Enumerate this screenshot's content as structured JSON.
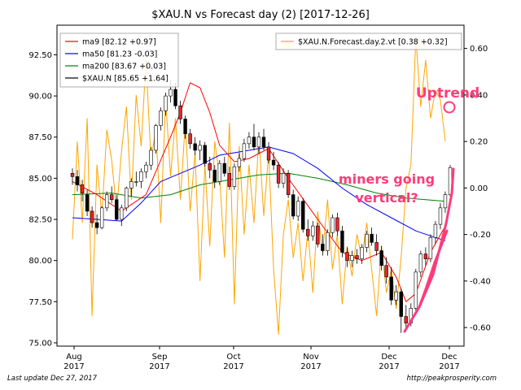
{
  "chart_data": {
    "type": "candlestick",
    "title": "$XAU.N vs Forecast day (2)  [2017-12-26]",
    "x_ticks": [
      "Aug\n2017",
      "Sep\n2017",
      "Oct\n2017",
      "Nov\n2017",
      "Dec\n2017",
      "Dec\n2017"
    ],
    "y_left": {
      "lim": [
        74.8,
        94.3
      ],
      "ticks": [
        "75.00",
        "77.50",
        "80.00",
        "82.50",
        "85.00",
        "87.50",
        "90.00",
        "92.50"
      ]
    },
    "y_right": {
      "lim": [
        -0.68,
        0.7
      ],
      "ticks": [
        "-0.60",
        "-0.40",
        "-0.20",
        "0.00",
        "0.20",
        "0.40",
        "0.60"
      ]
    },
    "legend_left": {
      "position": "top-left",
      "entries": [
        {
          "label": "ma9 [82.12 +0.97]",
          "color": "#ff0000"
        },
        {
          "label": "ma50 [81.23 -0.03]",
          "color": "#0000ff"
        },
        {
          "label": "ma200 [83.67 +0.03]",
          "color": "#008000"
        },
        {
          "label": "$XAU.N [85.65 +1.64]",
          "color": "#000000"
        }
      ]
    },
    "legend_right": {
      "position": "top-right",
      "entries": [
        {
          "label": "$XAU.N.Forecast.day.2.vt [0.38 +0.32]",
          "color": "#ffa500"
        }
      ]
    },
    "candles": [
      [
        85.3,
        85.6,
        84.6,
        85.1
      ],
      [
        85.1,
        85.5,
        84.2,
        84.6
      ],
      [
        84.6,
        84.9,
        83.6,
        84.1
      ],
      [
        84.0,
        84.3,
        82.7,
        83.0
      ],
      [
        83.0,
        83.3,
        82.0,
        82.3
      ],
      [
        82.3,
        82.8,
        81.6,
        82.0
      ],
      [
        82.0,
        83.3,
        81.9,
        83.2
      ],
      [
        83.2,
        84.2,
        83.0,
        84.0
      ],
      [
        84.0,
        84.5,
        83.5,
        83.7
      ],
      [
        83.7,
        84.0,
        82.4,
        82.5
      ],
      [
        82.5,
        83.4,
        82.1,
        83.2
      ],
      [
        83.2,
        84.5,
        83.0,
        84.4
      ],
      [
        84.4,
        85.0,
        83.9,
        84.8
      ],
      [
        84.8,
        85.4,
        84.5,
        84.8
      ],
      [
        84.8,
        85.6,
        84.4,
        85.4
      ],
      [
        85.4,
        86.0,
        85.0,
        85.8
      ],
      [
        85.8,
        86.9,
        85.5,
        86.7
      ],
      [
        86.7,
        88.3,
        86.5,
        88.2
      ],
      [
        88.2,
        89.3,
        87.9,
        89.1
      ],
      [
        89.1,
        90.2,
        88.8,
        90.0
      ],
      [
        90.0,
        91.0,
        89.6,
        90.4
      ],
      [
        90.4,
        90.8,
        89.2,
        89.4
      ],
      [
        89.4,
        89.7,
        88.3,
        88.6
      ],
      [
        88.6,
        88.8,
        87.4,
        87.7
      ],
      [
        87.7,
        88.0,
        86.8,
        87.1
      ],
      [
        87.1,
        87.5,
        86.4,
        86.7
      ],
      [
        86.7,
        87.3,
        86.1,
        87.0
      ],
      [
        87.0,
        87.2,
        85.7,
        85.9
      ],
      [
        85.9,
        86.3,
        85.0,
        85.5
      ],
      [
        85.5,
        85.8,
        84.4,
        84.8
      ],
      [
        84.8,
        86.1,
        84.6,
        85.9
      ],
      [
        85.9,
        86.3,
        85.1,
        85.3
      ],
      [
        85.3,
        85.7,
        84.3,
        84.5
      ],
      [
        84.5,
        85.9,
        84.3,
        85.7
      ],
      [
        85.7,
        86.5,
        85.4,
        86.2
      ],
      [
        86.2,
        87.4,
        86.0,
        87.1
      ],
      [
        87.1,
        87.8,
        86.8,
        87.5
      ],
      [
        87.5,
        88.3,
        86.7,
        86.9
      ],
      [
        86.9,
        87.8,
        86.5,
        87.5
      ],
      [
        87.5,
        88.0,
        86.7,
        86.9
      ],
      [
        86.9,
        87.2,
        85.9,
        86.1
      ],
      [
        86.1,
        86.6,
        85.5,
        85.8
      ],
      [
        85.8,
        86.0,
        84.4,
        84.7
      ],
      [
        84.7,
        85.6,
        84.4,
        85.3
      ],
      [
        85.3,
        85.5,
        83.8,
        84.0
      ],
      [
        84.0,
        84.3,
        82.5,
        82.7
      ],
      [
        82.7,
        83.9,
        82.4,
        83.6
      ],
      [
        83.6,
        83.8,
        81.7,
        81.9
      ],
      [
        81.9,
        82.5,
        81.2,
        81.5
      ],
      [
        81.5,
        82.4,
        81.2,
        82.1
      ],
      [
        82.1,
        82.3,
        80.8,
        81.0
      ],
      [
        81.0,
        81.6,
        80.3,
        80.6
      ],
      [
        80.6,
        81.9,
        80.3,
        81.7
      ],
      [
        81.7,
        82.8,
        81.4,
        82.6
      ],
      [
        82.6,
        82.9,
        81.5,
        81.8
      ],
      [
        81.8,
        82.1,
        80.2,
        80.5
      ],
      [
        80.5,
        80.8,
        79.6,
        80.0
      ],
      [
        80.0,
        80.6,
        79.6,
        80.3
      ],
      [
        80.3,
        80.7,
        79.8,
        80.1
      ],
      [
        80.1,
        81.0,
        79.8,
        80.8
      ],
      [
        80.8,
        81.8,
        80.5,
        81.6
      ],
      [
        81.6,
        82.0,
        80.9,
        81.1
      ],
      [
        81.1,
        81.6,
        80.3,
        80.6
      ],
      [
        80.6,
        80.9,
        79.4,
        79.7
      ],
      [
        79.7,
        80.2,
        78.6,
        79.0
      ],
      [
        79.0,
        79.6,
        77.3,
        77.6
      ],
      [
        77.6,
        78.5,
        77.3,
        78.1
      ],
      [
        78.1,
        78.3,
        75.6,
        76.6
      ],
      [
        76.6,
        77.3,
        75.8,
        76.2
      ],
      [
        76.2,
        77.4,
        76.0,
        77.1
      ],
      [
        77.1,
        79.5,
        76.9,
        79.3
      ],
      [
        79.3,
        80.6,
        79.0,
        80.4
      ],
      [
        80.4,
        80.8,
        79.7,
        80.1
      ],
      [
        80.1,
        81.6,
        79.9,
        81.4
      ],
      [
        81.4,
        82.4,
        81.0,
        82.2
      ],
      [
        82.2,
        83.5,
        81.9,
        83.2
      ],
      [
        83.2,
        84.2,
        82.9,
        84.0
      ],
      [
        84.0,
        85.8,
        83.9,
        85.65
      ]
    ],
    "ma9": [
      [
        0,
        84.8
      ],
      [
        5,
        84.0
      ],
      [
        10,
        83.0
      ],
      [
        15,
        84.0
      ],
      [
        20,
        87.5
      ],
      [
        22,
        89.0
      ],
      [
        24,
        90.8
      ],
      [
        26,
        90.5
      ],
      [
        28,
        89.0
      ],
      [
        30,
        87.0
      ],
      [
        33,
        86.0
      ],
      [
        36,
        86.2
      ],
      [
        40,
        86.8
      ],
      [
        44,
        85.0
      ],
      [
        50,
        82.5
      ],
      [
        55,
        80.5
      ],
      [
        59,
        80.0
      ],
      [
        63,
        80.5
      ],
      [
        66,
        79.0
      ],
      [
        68,
        77.5
      ],
      [
        70,
        78.0
      ],
      [
        73,
        80.5
      ],
      [
        76,
        82.1
      ]
    ],
    "ma50": [
      [
        0,
        82.6
      ],
      [
        5,
        82.5
      ],
      [
        10,
        82.4
      ],
      [
        14,
        83.5
      ],
      [
        18,
        84.8
      ],
      [
        22,
        85.3
      ],
      [
        26,
        85.8
      ],
      [
        30,
        86.4
      ],
      [
        34,
        86.6
      ],
      [
        40,
        86.9
      ],
      [
        45,
        86.5
      ],
      [
        50,
        85.6
      ],
      [
        55,
        84.4
      ],
      [
        60,
        83.4
      ],
      [
        65,
        82.6
      ],
      [
        70,
        81.8
      ],
      [
        73,
        81.5
      ],
      [
        76,
        81.2
      ]
    ],
    "ma200": [
      [
        0,
        84.0
      ],
      [
        8,
        84.1
      ],
      [
        14,
        83.8
      ],
      [
        20,
        84.0
      ],
      [
        26,
        84.6
      ],
      [
        32,
        84.9
      ],
      [
        38,
        85.2
      ],
      [
        44,
        85.3
      ],
      [
        50,
        85.0
      ],
      [
        56,
        84.6
      ],
      [
        62,
        84.1
      ],
      [
        68,
        83.8
      ],
      [
        72,
        83.7
      ],
      [
        76,
        83.6
      ]
    ],
    "forecast": [
      [
        0,
        -0.22
      ],
      [
        1,
        0.2
      ],
      [
        2,
        -0.15
      ],
      [
        3,
        0.3
      ],
      [
        4,
        -0.55
      ],
      [
        5,
        0.1
      ],
      [
        6,
        -0.12
      ],
      [
        7,
        0.25
      ],
      [
        8,
        0.12
      ],
      [
        9,
        -0.1
      ],
      [
        10,
        0.16
      ],
      [
        11,
        0.35
      ],
      [
        12,
        -0.05
      ],
      [
        13,
        0.4
      ],
      [
        14,
        0.18
      ],
      [
        15,
        0.55
      ],
      [
        16,
        0.12
      ],
      [
        17,
        0.25
      ],
      [
        18,
        -0.15
      ],
      [
        19,
        0.38
      ],
      [
        20,
        0.05
      ],
      [
        21,
        0.3
      ],
      [
        22,
        -0.05
      ],
      [
        23,
        0.28
      ],
      [
        24,
        -0.1
      ],
      [
        25,
        0.15
      ],
      [
        26,
        -0.4
      ],
      [
        27,
        0.1
      ],
      [
        28,
        -0.25
      ],
      [
        29,
        0.2
      ],
      [
        30,
        0.05
      ],
      [
        31,
        -0.3
      ],
      [
        32,
        0.28
      ],
      [
        33,
        -0.5
      ],
      [
        34,
        0.18
      ],
      [
        35,
        -0.2
      ],
      [
        36,
        0.1
      ],
      [
        37,
        -0.15
      ],
      [
        38,
        0.22
      ],
      [
        39,
        -0.12
      ],
      [
        40,
        0.15
      ],
      [
        41,
        -0.35
      ],
      [
        42,
        -0.63
      ],
      [
        43,
        -0.2
      ],
      [
        44,
        -0.05
      ],
      [
        45,
        -0.3
      ],
      [
        46,
        -0.15
      ],
      [
        47,
        -0.4
      ],
      [
        48,
        -0.18
      ],
      [
        49,
        -0.45
      ],
      [
        50,
        -0.1
      ],
      [
        51,
        -0.28
      ],
      [
        52,
        -0.05
      ],
      [
        53,
        -0.35
      ],
      [
        54,
        -0.2
      ],
      [
        55,
        -0.5
      ],
      [
        56,
        -0.25
      ],
      [
        57,
        -0.38
      ],
      [
        58,
        -0.2
      ],
      [
        59,
        -0.3
      ],
      [
        60,
        -0.15
      ],
      [
        61,
        -0.35
      ],
      [
        62,
        -0.55
      ],
      [
        63,
        -0.25
      ],
      [
        64,
        -0.45
      ],
      [
        65,
        -0.35
      ],
      [
        66,
        -0.52
      ],
      [
        67,
        -0.3
      ],
      [
        68,
        0.0
      ],
      [
        69,
        0.1
      ],
      [
        70,
        0.65
      ],
      [
        71,
        0.35
      ],
      [
        72,
        0.55
      ],
      [
        73,
        0.3
      ],
      [
        74,
        0.42
      ],
      [
        75,
        0.38
      ],
      [
        76,
        0.2
      ]
    ],
    "annotations": [
      {
        "text": "Uptrend",
        "color": "#ff3b7a"
      },
      {
        "text": "miners going",
        "color": "#ff3b7a"
      },
      {
        "text": "vertical?",
        "color": "#ff3b7a"
      }
    ]
  },
  "footer": {
    "left": "Last update Dec 27, 2017",
    "right": "http://peakprosperity.com"
  }
}
